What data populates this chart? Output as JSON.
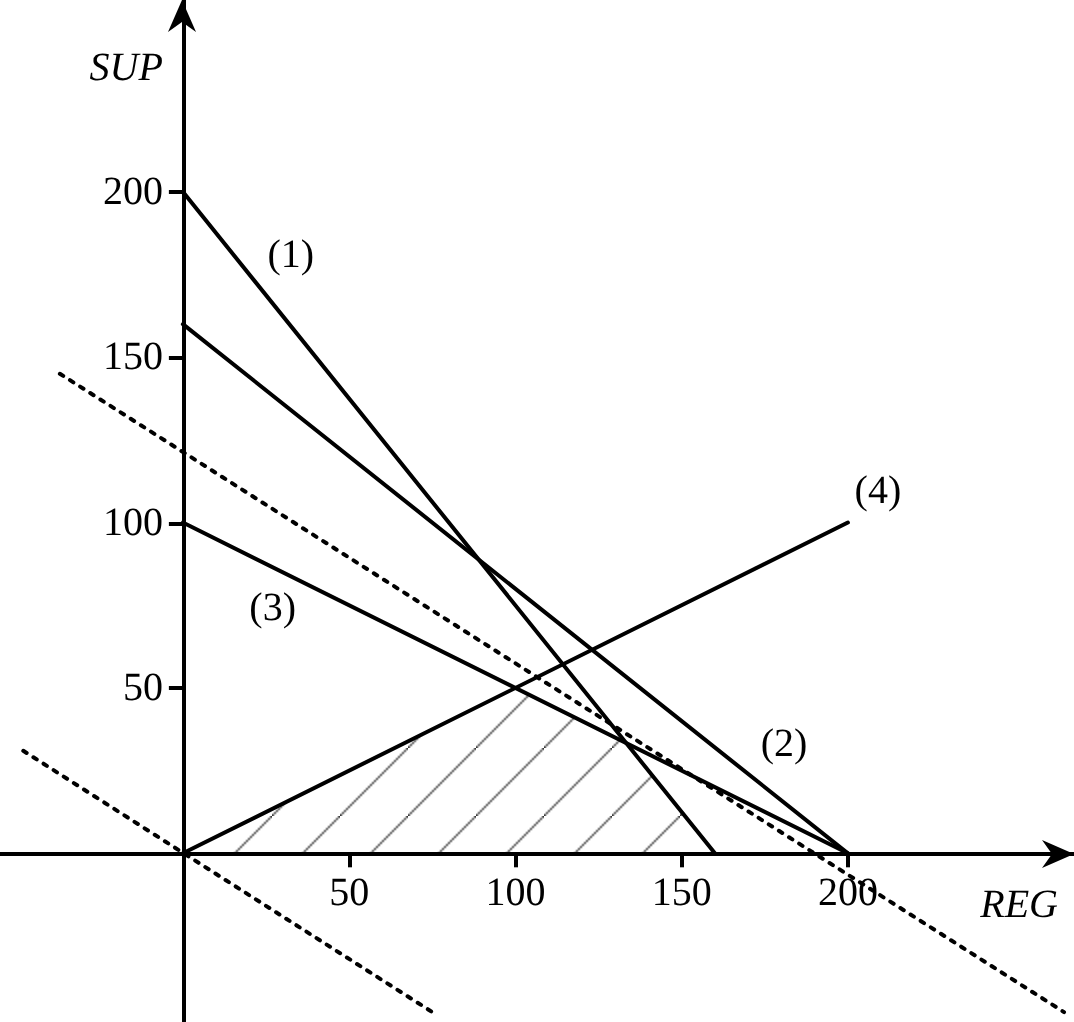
{
  "chart_data": {
    "type": "line",
    "xlabel": "REG",
    "ylabel": "SUP",
    "xlim": [
      -55,
      268
    ],
    "ylim": [
      -51,
      258
    ],
    "xticks": [
      50,
      100,
      150,
      200
    ],
    "yticks": [
      50,
      100,
      150,
      200
    ],
    "marker": "none",
    "series": [
      {
        "type": "area",
        "color": "#000000",
        "x": [
          0,
          100,
          133.3,
          160
        ],
        "values": [
          0,
          50,
          33.3,
          0
        ]
      },
      {
        "name": "(1)",
        "color": "#000000",
        "line_style": "solid",
        "x": [
          0,
          160
        ],
        "values": [
          200,
          0
        ]
      },
      {
        "name": "(2)",
        "color": "#000000",
        "line_style": "solid",
        "x": [
          0,
          200
        ],
        "values": [
          160,
          0
        ]
      },
      {
        "name": "(3)",
        "color": "#000000",
        "line_style": "solid",
        "x": [
          0,
          200
        ],
        "values": [
          100,
          0
        ]
      },
      {
        "name": "(4)",
        "color": "#000000",
        "line_style": "solid",
        "x": [
          0,
          200
        ],
        "values": [
          0,
          100
        ]
      },
      {
        "color": "#000000",
        "line_style": "dotted",
        "x": [
          -37,
          265
        ],
        "values": [
          145,
          -48
        ]
      },
      {
        "color": "#000000",
        "line_style": "dotted",
        "x": [
          -48,
          75
        ],
        "values": [
          31,
          -48
        ]
      }
    ]
  }
}
